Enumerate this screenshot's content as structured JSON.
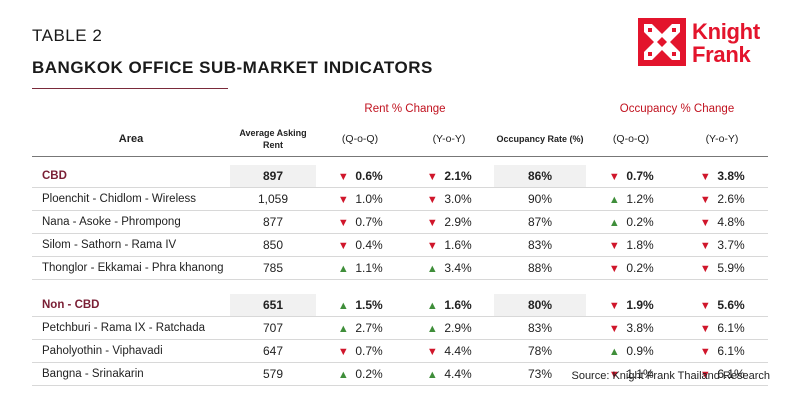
{
  "header": {
    "table_label": "TABLE 2",
    "title": "BANGKOK OFFICE SUB-MARKET INDICATORS"
  },
  "logo": {
    "line1": "Knight",
    "line2": "Frank",
    "color": "#e3142c"
  },
  "table": {
    "group_headers": {
      "rent": "Rent % Change",
      "occupancy": "Occupancy % Change"
    },
    "columns": {
      "area": "Area",
      "rent": "Average Asking Rent",
      "rent_qoq": "(Q-o-Q)",
      "rent_yoy": "(Y-o-Y)",
      "occ": "Occupancy Rate (%)",
      "occ_qoq": "(Q-o-Q)",
      "occ_yoy": "(Y-o-Y)"
    },
    "sections": [
      {
        "name": "CBD",
        "rent": "897",
        "rent_qoq": {
          "v": "0.6%",
          "dir": "down"
        },
        "rent_yoy": {
          "v": "2.1%",
          "dir": "down"
        },
        "occ": "86%",
        "occ_qoq": {
          "v": "0.7%",
          "dir": "down"
        },
        "occ_yoy": {
          "v": "3.8%",
          "dir": "down"
        },
        "rows": [
          {
            "name": "Ploenchit - Chidlom - Wireless",
            "rent": "1,059",
            "rent_qoq": {
              "v": "1.0%",
              "dir": "down"
            },
            "rent_yoy": {
              "v": "3.0%",
              "dir": "down"
            },
            "occ": "90%",
            "occ_qoq": {
              "v": "1.2%",
              "dir": "up"
            },
            "occ_yoy": {
              "v": "2.6%",
              "dir": "down"
            }
          },
          {
            "name": "Nana - Asoke - Phrompong",
            "rent": "877",
            "rent_qoq": {
              "v": "0.7%",
              "dir": "down"
            },
            "rent_yoy": {
              "v": "2.9%",
              "dir": "down"
            },
            "occ": "87%",
            "occ_qoq": {
              "v": "0.2%",
              "dir": "up"
            },
            "occ_yoy": {
              "v": "4.8%",
              "dir": "down"
            }
          },
          {
            "name": "Silom - Sathorn - Rama IV",
            "rent": "850",
            "rent_qoq": {
              "v": "0.4%",
              "dir": "down"
            },
            "rent_yoy": {
              "v": "1.6%",
              "dir": "down"
            },
            "occ": "83%",
            "occ_qoq": {
              "v": "1.8%",
              "dir": "down"
            },
            "occ_yoy": {
              "v": "3.7%",
              "dir": "down"
            }
          },
          {
            "name": "Thonglor  - Ekkamai - Phra khanong",
            "rent": "785",
            "rent_qoq": {
              "v": "1.1%",
              "dir": "up"
            },
            "rent_yoy": {
              "v": "3.4%",
              "dir": "up"
            },
            "occ": "88%",
            "occ_qoq": {
              "v": "0.2%",
              "dir": "down"
            },
            "occ_yoy": {
              "v": "5.9%",
              "dir": "down"
            }
          }
        ]
      },
      {
        "name": "Non - CBD",
        "rent": "651",
        "rent_qoq": {
          "v": "1.5%",
          "dir": "up"
        },
        "rent_yoy": {
          "v": "1.6%",
          "dir": "up"
        },
        "occ": "80%",
        "occ_qoq": {
          "v": "1.9%",
          "dir": "down"
        },
        "occ_yoy": {
          "v": "5.6%",
          "dir": "down"
        },
        "rows": [
          {
            "name": "Petchburi - Rama IX - Ratchada",
            "rent": "707",
            "rent_qoq": {
              "v": "2.7%",
              "dir": "up"
            },
            "rent_yoy": {
              "v": "2.9%",
              "dir": "up"
            },
            "occ": "83%",
            "occ_qoq": {
              "v": "3.8%",
              "dir": "down"
            },
            "occ_yoy": {
              "v": "6.1%",
              "dir": "down"
            }
          },
          {
            "name": "Paholyothin - Viphavadi",
            "rent": "647",
            "rent_qoq": {
              "v": "0.7%",
              "dir": "down"
            },
            "rent_yoy": {
              "v": "4.4%",
              "dir": "down"
            },
            "occ": "78%",
            "occ_qoq": {
              "v": "0.9%",
              "dir": "up"
            },
            "occ_yoy": {
              "v": "6.1%",
              "dir": "down"
            }
          },
          {
            "name": "Bangna - Srinakarin",
            "rent": "579",
            "rent_qoq": {
              "v": "0.2%",
              "dir": "up"
            },
            "rent_yoy": {
              "v": "4.4%",
              "dir": "up"
            },
            "occ": "73%",
            "occ_qoq": {
              "v": "1.1%",
              "dir": "down"
            },
            "occ_yoy": {
              "v": "6.1%",
              "dir": "down"
            }
          }
        ]
      }
    ]
  },
  "footer": {
    "source": "Source: Knight Frank Thailand Research"
  }
}
